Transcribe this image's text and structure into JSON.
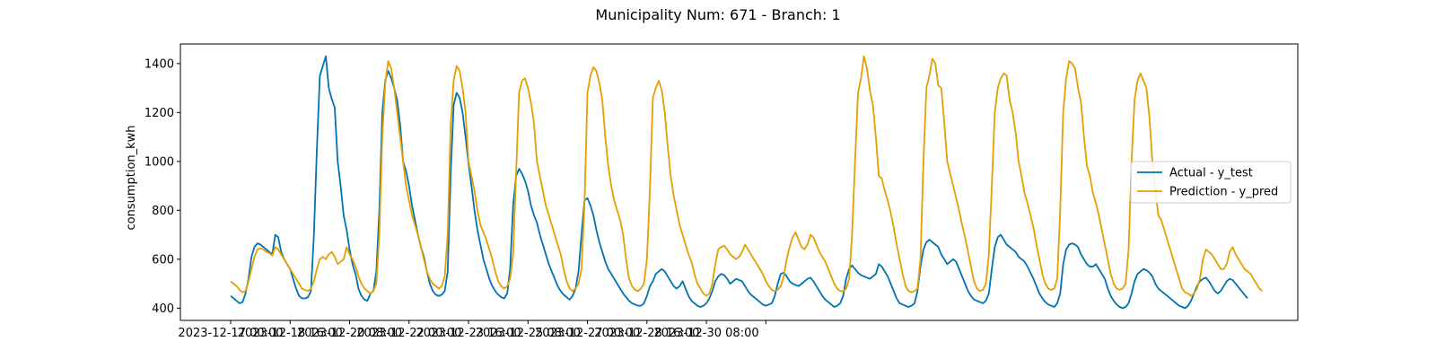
{
  "chart_data": {
    "type": "line",
    "title": "Municipality Num: 671 - Branch: 1",
    "xlabel": "",
    "ylabel": "consumption_kwh",
    "ylim": [
      350,
      1480
    ],
    "yticks": [
      400,
      600,
      800,
      1000,
      1200,
      1400
    ],
    "xticks": [
      "2023-12-17 00:00",
      "2023-12-18 16:00",
      "2023-12-20 08:00",
      "2023-12-22 00:00",
      "2023-12-23 16:00",
      "2023-12-25 08:00",
      "2023-12-27 00:00",
      "2023-12-28 16:00",
      "2023-12-30 08:00",
      ""
    ],
    "x_start": "2023-12-17 00:00",
    "x_interval_hours": 2,
    "grid": false,
    "legend_position": "center-right",
    "series": [
      {
        "name": "Actual - y_test",
        "color": "#0072B2",
        "values": [
          450,
          440,
          430,
          420,
          425,
          460,
          520,
          610,
          650,
          665,
          660,
          650,
          640,
          630,
          620,
          700,
          690,
          630,
          600,
          580,
          560,
          520,
          480,
          450,
          440,
          440,
          445,
          470,
          700,
          1050,
          1350,
          1390,
          1430,
          1300,
          1255,
          1220,
          1000,
          900,
          780,
          720,
          640,
          580,
          540,
          480,
          450,
          435,
          430,
          460,
          470,
          550,
          800,
          1200,
          1330,
          1370,
          1340,
          1300,
          1250,
          1150,
          1000,
          960,
          900,
          820,
          760,
          700,
          650,
          610,
          550,
          500,
          470,
          455,
          450,
          455,
          470,
          550,
          950,
          1230,
          1280,
          1260,
          1200,
          1100,
          990,
          900,
          800,
          720,
          660,
          600,
          560,
          520,
          490,
          470,
          455,
          445,
          440,
          460,
          560,
          820,
          940,
          970,
          950,
          920,
          880,
          820,
          780,
          750,
          700,
          660,
          620,
          580,
          550,
          520,
          490,
          470,
          455,
          445,
          435,
          450,
          480,
          550,
          700,
          840,
          850,
          820,
          780,
          720,
          670,
          630,
          590,
          560,
          540,
          520,
          500,
          480,
          460,
          445,
          430,
          420,
          415,
          410,
          410,
          420,
          450,
          490,
          510,
          540,
          550,
          560,
          550,
          530,
          510,
          490,
          480,
          490,
          510,
          480,
          450,
          430,
          420,
          410,
          405,
          410,
          420,
          440,
          470,
          510,
          530,
          540,
          535,
          520,
          500,
          510,
          520,
          515,
          510,
          490,
          470,
          455,
          445,
          435,
          425,
          415,
          410,
          415,
          420,
          450,
          500,
          540,
          545,
          530,
          510,
          500,
          495,
          490,
          500,
          510,
          520,
          525,
          510,
          490,
          470,
          450,
          435,
          425,
          415,
          405,
          410,
          420,
          450,
          520,
          560,
          575,
          560,
          545,
          535,
          530,
          525,
          520,
          530,
          540,
          580,
          570,
          550,
          530,
          500,
          470,
          440,
          420,
          415,
          410,
          405,
          410,
          420,
          470,
          570,
          640,
          670,
          680,
          670,
          660,
          650,
          620,
          600,
          580,
          590,
          600,
          590,
          560,
          530,
          500,
          470,
          450,
          435,
          430,
          425,
          420,
          430,
          460,
          560,
          650,
          690,
          700,
          680,
          660,
          650,
          640,
          630,
          610,
          600,
          590,
          570,
          545,
          520,
          490,
          460,
          440,
          425,
          415,
          410,
          405,
          420,
          460,
          580,
          640,
          660,
          665,
          660,
          650,
          620,
          600,
          580,
          570,
          570,
          580,
          560,
          540,
          520,
          480,
          450,
          430,
          415,
          405,
          400,
          405,
          420,
          460,
          510,
          540,
          550,
          560,
          555,
          545,
          530,
          500,
          480,
          470,
          460,
          450,
          440,
          430,
          420,
          410,
          405,
          400,
          410,
          430,
          460,
          490,
          510,
          520,
          525,
          510,
          490,
          470,
          460,
          470,
          490,
          510,
          520,
          515,
          500,
          485,
          470,
          455,
          440
        ]
      },
      {
        "name": "Prediction - y_pred",
        "color": "#E69F00",
        "values": [
          510,
          500,
          490,
          475,
          465,
          470,
          510,
          560,
          610,
          640,
          645,
          640,
          630,
          625,
          615,
          650,
          640,
          620,
          600,
          580,
          560,
          540,
          520,
          500,
          480,
          475,
          470,
          480,
          510,
          560,
          600,
          610,
          600,
          620,
          630,
          610,
          580,
          590,
          600,
          650,
          620,
          600,
          570,
          530,
          500,
          480,
          470,
          460,
          470,
          500,
          700,
          1100,
          1320,
          1410,
          1380,
          1300,
          1200,
          1100,
          1000,
          900,
          840,
          780,
          740,
          700,
          650,
          600,
          550,
          520,
          500,
          490,
          480,
          490,
          530,
          700,
          1150,
          1330,
          1390,
          1370,
          1300,
          1200,
          1000,
          940,
          880,
          800,
          740,
          710,
          680,
          640,
          600,
          550,
          510,
          490,
          480,
          490,
          520,
          620,
          950,
          1280,
          1330,
          1340,
          1300,
          1240,
          1160,
          1000,
          940,
          880,
          820,
          780,
          740,
          700,
          660,
          620,
          560,
          510,
          480,
          470,
          480,
          500,
          560,
          820,
          1280,
          1350,
          1385,
          1370,
          1320,
          1250,
          1100,
          980,
          900,
          840,
          800,
          760,
          700,
          600,
          520,
          490,
          475,
          470,
          480,
          500,
          600,
          880,
          1260,
          1300,
          1330,
          1290,
          1200,
          1060,
          940,
          860,
          800,
          740,
          700,
          660,
          620,
          590,
          540,
          500,
          480,
          460,
          450,
          460,
          500,
          580,
          640,
          650,
          655,
          640,
          620,
          610,
          600,
          610,
          630,
          660,
          640,
          620,
          600,
          580,
          560,
          540,
          510,
          490,
          475,
          470,
          475,
          490,
          530,
          600,
          650,
          690,
          710,
          680,
          650,
          640,
          660,
          700,
          690,
          660,
          630,
          610,
          590,
          560,
          530,
          500,
          480,
          470,
          470,
          480,
          520,
          700,
          1000,
          1280,
          1340,
          1430,
          1380,
          1290,
          1230,
          1100,
          940,
          930,
          880,
          840,
          790,
          730,
          660,
          600,
          540,
          490,
          470,
          465,
          470,
          480,
          600,
          1000,
          1300,
          1350,
          1420,
          1400,
          1310,
          1300,
          1160,
          1000,
          950,
          900,
          850,
          800,
          740,
          690,
          630,
          570,
          510,
          480,
          470,
          475,
          500,
          620,
          900,
          1200,
          1300,
          1340,
          1360,
          1350,
          1250,
          1200,
          1120,
          1000,
          940,
          870,
          830,
          780,
          730,
          660,
          600,
          540,
          500,
          480,
          475,
          480,
          520,
          800,
          1200,
          1340,
          1410,
          1400,
          1380,
          1300,
          1240,
          1100,
          980,
          940,
          870,
          830,
          780,
          720,
          660,
          600,
          540,
          500,
          480,
          475,
          480,
          500,
          640,
          1000,
          1250,
          1330,
          1360,
          1330,
          1300,
          1180,
          1000,
          880,
          780,
          760,
          720,
          680,
          640,
          600,
          560,
          520,
          480,
          465,
          460,
          450,
          460,
          480,
          520,
          600,
          640,
          630,
          620,
          600,
          580,
          560,
          560,
          580,
          630,
          650,
          620,
          600,
          580,
          560,
          550,
          540,
          520,
          500,
          480,
          470
        ]
      }
    ]
  }
}
